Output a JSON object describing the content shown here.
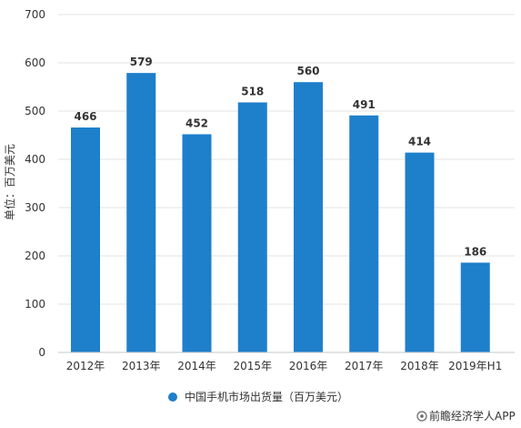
{
  "chart_data": {
    "type": "bar",
    "categories": [
      "2012年",
      "2013年",
      "2014年",
      "2015年",
      "2016年",
      "2017年",
      "2018年",
      "2019年H1"
    ],
    "series": [
      {
        "name": "中国手机市场出货量（百万美元）",
        "values": [
          466,
          579,
          452,
          518,
          560,
          491,
          414,
          186
        ],
        "color": "#1e7fcb"
      }
    ],
    "ylabel": "单位：百万美元",
    "ylim": [
      0,
      700
    ],
    "yticks": [
      0,
      100,
      200,
      300,
      400,
      500,
      600,
      700
    ],
    "grid": true,
    "legend_position": "bottom"
  },
  "footer": {
    "source": "前瞻经济学人APP"
  }
}
